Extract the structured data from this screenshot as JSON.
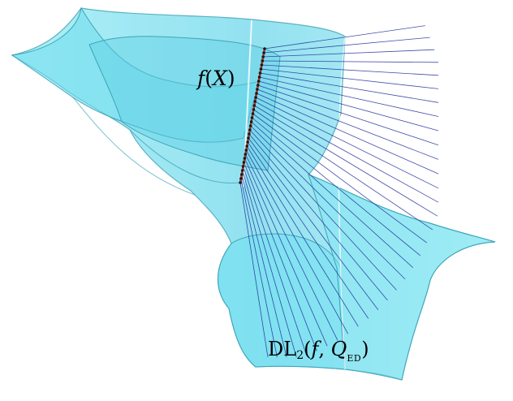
{
  "figure": {
    "surface_fill": "#6fe0f0",
    "surface_edge": "#3ea5b8",
    "curve_color": "#c0392b",
    "ruling_color": "#1f2f9a",
    "ruling_count": 34
  },
  "labels": {
    "fx_f": "f",
    "fx_open": "(",
    "fx_var": "X",
    "fx_close": ")",
    "dl_name": "DL",
    "dl_sub": "2",
    "dl_open": "(",
    "dl_f": "f",
    "dl_comma": ", ",
    "dl_q": "Q",
    "dl_qsub": "ED",
    "dl_close": ")"
  }
}
